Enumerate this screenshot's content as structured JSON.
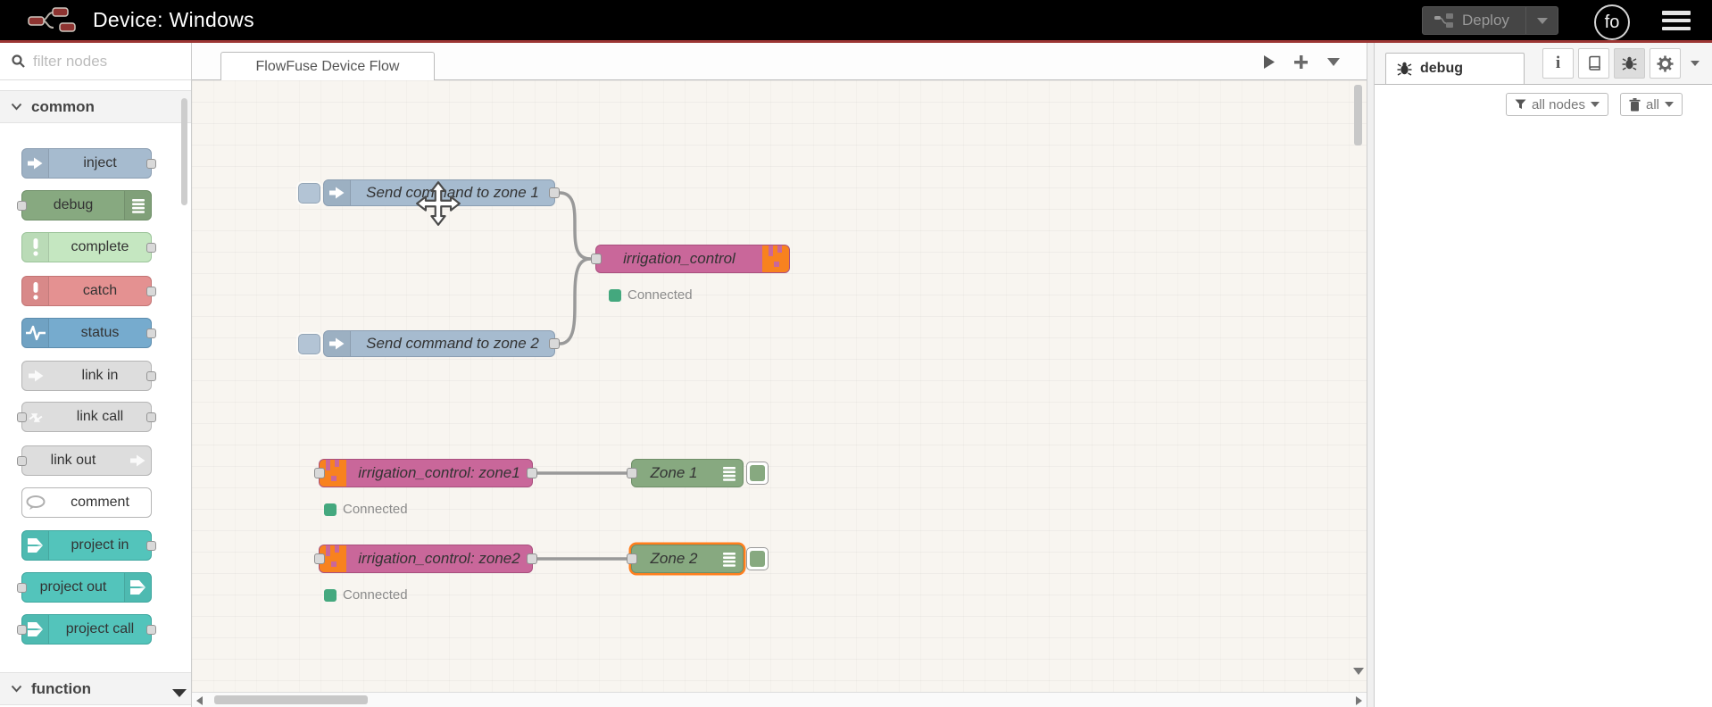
{
  "header": {
    "title": "Device: Windows",
    "deploy": {
      "label": "Deploy"
    },
    "avatar": "fo"
  },
  "palette": {
    "filter_placeholder": "filter nodes",
    "categories": [
      {
        "id": "common",
        "label": "common"
      },
      {
        "id": "function",
        "label": "function"
      }
    ],
    "nodes": [
      {
        "id": "inject",
        "label": "inject",
        "color": "#a6bbcf",
        "border": "#8a9db1",
        "icon": "inject-arrow-icon",
        "icon_side": "left",
        "ports": "right"
      },
      {
        "id": "debug",
        "label": "debug",
        "color": "#87a980",
        "border": "#6f8f68",
        "icon": "debug-lines-icon",
        "icon_side": "right",
        "ports": "left"
      },
      {
        "id": "complete",
        "label": "complete",
        "color": "#c5e7c1",
        "border": "#9cc49a",
        "icon": "exclamation-icon",
        "icon_side": "left",
        "ports": "right"
      },
      {
        "id": "catch",
        "label": "catch",
        "color": "#e49191",
        "border": "#c27474",
        "icon": "exclamation-icon",
        "icon_side": "left",
        "ports": "right"
      },
      {
        "id": "status",
        "label": "status",
        "color": "#76abce",
        "border": "#5c8cad",
        "icon": "status-wave-icon",
        "icon_side": "left",
        "ports": "right"
      },
      {
        "id": "link-in",
        "label": "link in",
        "color": "#dddddd",
        "border": "#b5b5b5",
        "icon": "link-arrow-icon",
        "icon_side": "left",
        "ports": "right"
      },
      {
        "id": "link-call",
        "label": "link call",
        "color": "#dddddd",
        "border": "#b5b5b5",
        "icon": "link-call-icon",
        "icon_side": "left",
        "ports": "both"
      },
      {
        "id": "link-out",
        "label": "link out",
        "color": "#dddddd",
        "border": "#b5b5b5",
        "icon": "link-arrow-icon",
        "icon_side": "right",
        "ports": "left"
      },
      {
        "id": "comment",
        "label": "comment",
        "color": "#ffffff",
        "border": "#b5b5b5",
        "icon": "comment-bubble-icon",
        "icon_side": "left",
        "ports": "none"
      },
      {
        "id": "project-in",
        "label": "project in",
        "color": "#53c4bb",
        "border": "#3da69e",
        "icon": "project-branch-icon",
        "icon_side": "left",
        "ports": "right"
      },
      {
        "id": "project-out",
        "label": "project out",
        "color": "#53c4bb",
        "border": "#3da69e",
        "icon": "project-branch-icon",
        "icon_side": "right",
        "ports": "left"
      },
      {
        "id": "project-call",
        "label": "project call",
        "color": "#53c4bb",
        "border": "#3da69e",
        "icon": "project-branch-icon",
        "icon_side": "left",
        "ports": "both"
      }
    ]
  },
  "workspace": {
    "tab_label": "FlowFuse Device Flow",
    "flow_nodes": [
      {
        "id": "inject-zone1",
        "type": "inject",
        "label": "Send command to zone 1"
      },
      {
        "id": "inject-zone2",
        "type": "inject",
        "label": "Send command to zone 2"
      },
      {
        "id": "irrigation-control",
        "type": "project",
        "label": "irrigation_control",
        "status": "Connected"
      },
      {
        "id": "control-zone1",
        "type": "project",
        "label": "irrigation_control: zone1",
        "status": "Connected"
      },
      {
        "id": "control-zone2",
        "type": "project",
        "label": "irrigation_control: zone2",
        "status": "Connected"
      },
      {
        "id": "zone1-debug",
        "type": "debug",
        "label": "Zone 1"
      },
      {
        "id": "zone2-debug",
        "type": "debug",
        "label": "Zone 2",
        "selected": true
      }
    ]
  },
  "debug_panel": {
    "tab_label": "debug",
    "filter_button": "all nodes",
    "clear_button": "all"
  },
  "colors": {
    "header_bg": "#000000",
    "accent_red": "#9c3634",
    "node_inject_blue": "#a6bbcf",
    "node_debug_green": "#87a980",
    "node_project_pink": "#c9679a",
    "project_icon_orange": "#f8821f",
    "status_green": "#44a87e",
    "selection_orange": "#ff7f1e",
    "wire_gray": "#999999"
  }
}
